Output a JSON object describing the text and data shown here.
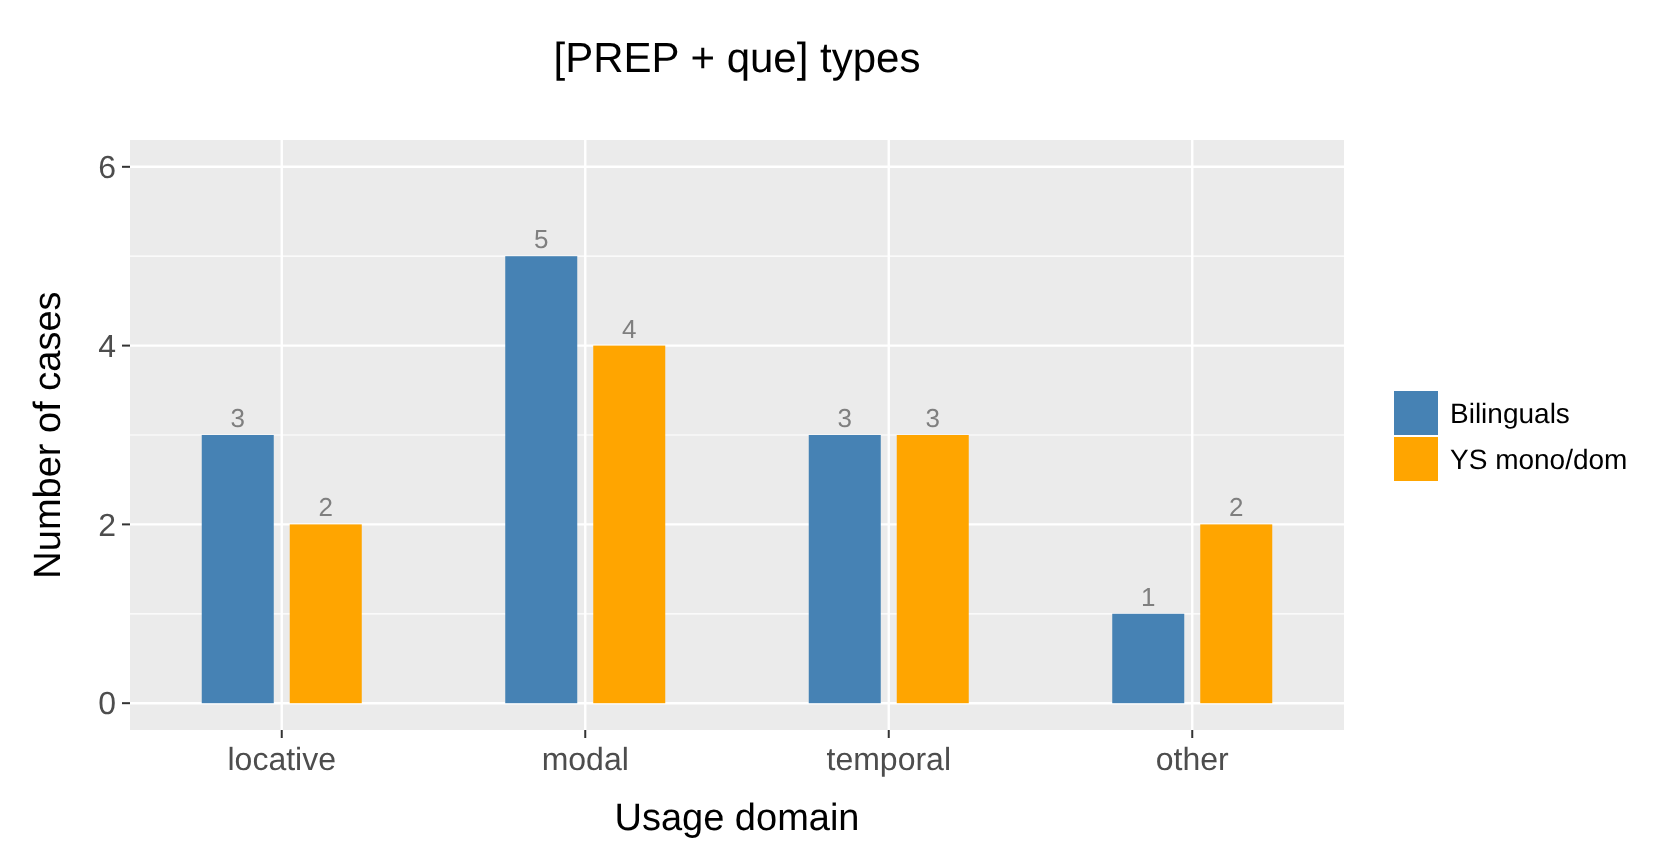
{
  "chart_data": {
    "type": "bar",
    "title": "[PREP + que] types",
    "xlabel": "Usage domain",
    "ylabel": "Number of cases",
    "categories": [
      "locative",
      "modal",
      "temporal",
      "other"
    ],
    "series": [
      {
        "name": "Bilinguals",
        "color": "#4682b4",
        "values": [
          3,
          5,
          3,
          1
        ]
      },
      {
        "name": "YS mono/dom",
        "color": "#ffa500",
        "values": [
          2,
          4,
          3,
          2
        ]
      }
    ],
    "ylim": [
      -0.3,
      6.3
    ],
    "yticks": [
      0,
      2,
      4,
      6
    ],
    "grid": true,
    "legend": "right",
    "data_labels": true
  }
}
